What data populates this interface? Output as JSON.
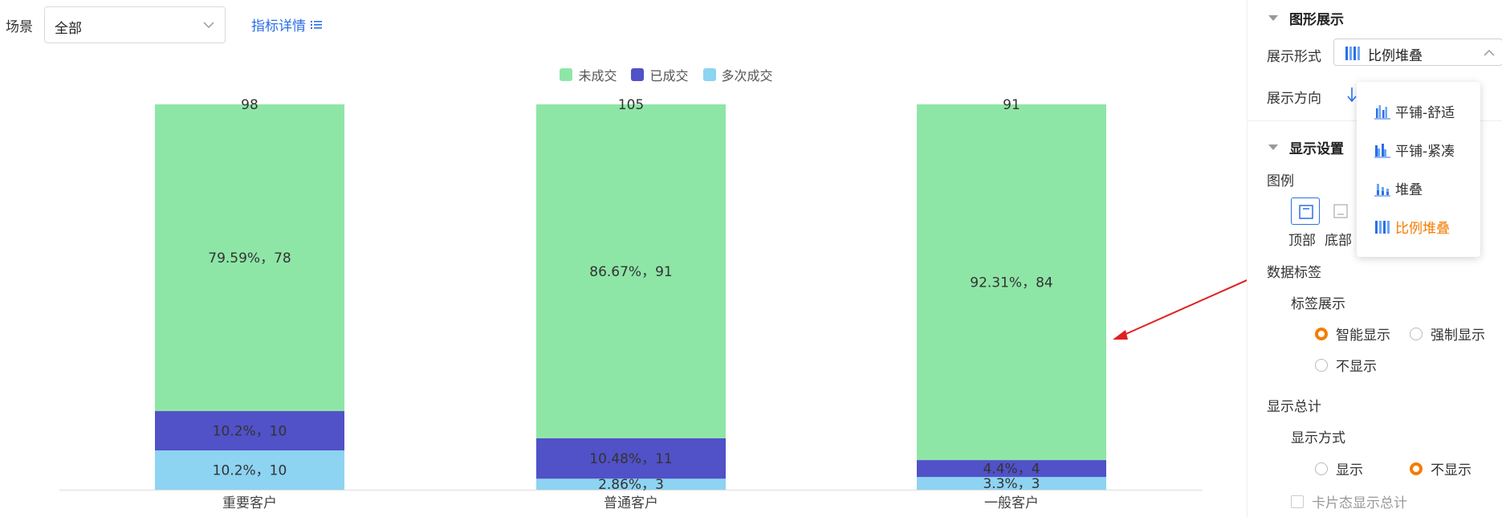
{
  "toolbar": {
    "scene_label": "场景",
    "scene_value": "全部",
    "detail_link": "指标详情"
  },
  "chart_data": {
    "type": "bar",
    "stacking": "percent",
    "categories": [
      "重要客户",
      "普通客户",
      "一般客户"
    ],
    "totals": [
      98,
      105,
      91
    ],
    "series": [
      {
        "name": "未成交",
        "color": "#8ee6a6",
        "values": [
          78,
          91,
          84
        ],
        "percents": [
          79.59,
          86.67,
          92.31
        ],
        "labels": [
          "79.59%，78",
          "86.67%，91",
          "92.31%，84"
        ]
      },
      {
        "name": "已成交",
        "color": "#5151c8",
        "values": [
          10,
          11,
          4
        ],
        "percents": [
          10.2,
          10.48,
          4.4
        ],
        "labels": [
          "10.2%，10",
          "10.48%，11",
          "4.4%，4"
        ]
      },
      {
        "name": "多次成交",
        "color": "#8dd3f2",
        "values": [
          10,
          3,
          3
        ],
        "percents": [
          10.2,
          2.86,
          3.3
        ],
        "labels": [
          "10.2%，10",
          "2.86%，3",
          "3.3%，3"
        ]
      }
    ],
    "legend_position": "top"
  },
  "panel": {
    "graphic_section": "图形展示",
    "display_form_label": "展示形式",
    "display_form_value": "比例堆叠",
    "display_direction_label": "展示方向",
    "display_settings_section": "显示设置",
    "legend_label": "图例",
    "legend_positions": [
      "顶部",
      "底部"
    ],
    "data_label_title": "数据标签",
    "label_display_title": "标签展示",
    "label_options": [
      "智能显示",
      "强制显示",
      "不显示"
    ],
    "show_total_title": "显示总计",
    "show_method_title": "显示方式",
    "method_options": [
      "显示",
      "不显示"
    ],
    "card_total_label": "卡片态显示总计"
  },
  "dropdown": {
    "items": [
      "平铺-舒适",
      "平铺-紧凑",
      "堆叠",
      "比例堆叠"
    ],
    "selected": "比例堆叠"
  },
  "colors": {
    "accent": "#2b6fe6",
    "active": "#f57c00",
    "annotation_arrow": "#e02020"
  }
}
